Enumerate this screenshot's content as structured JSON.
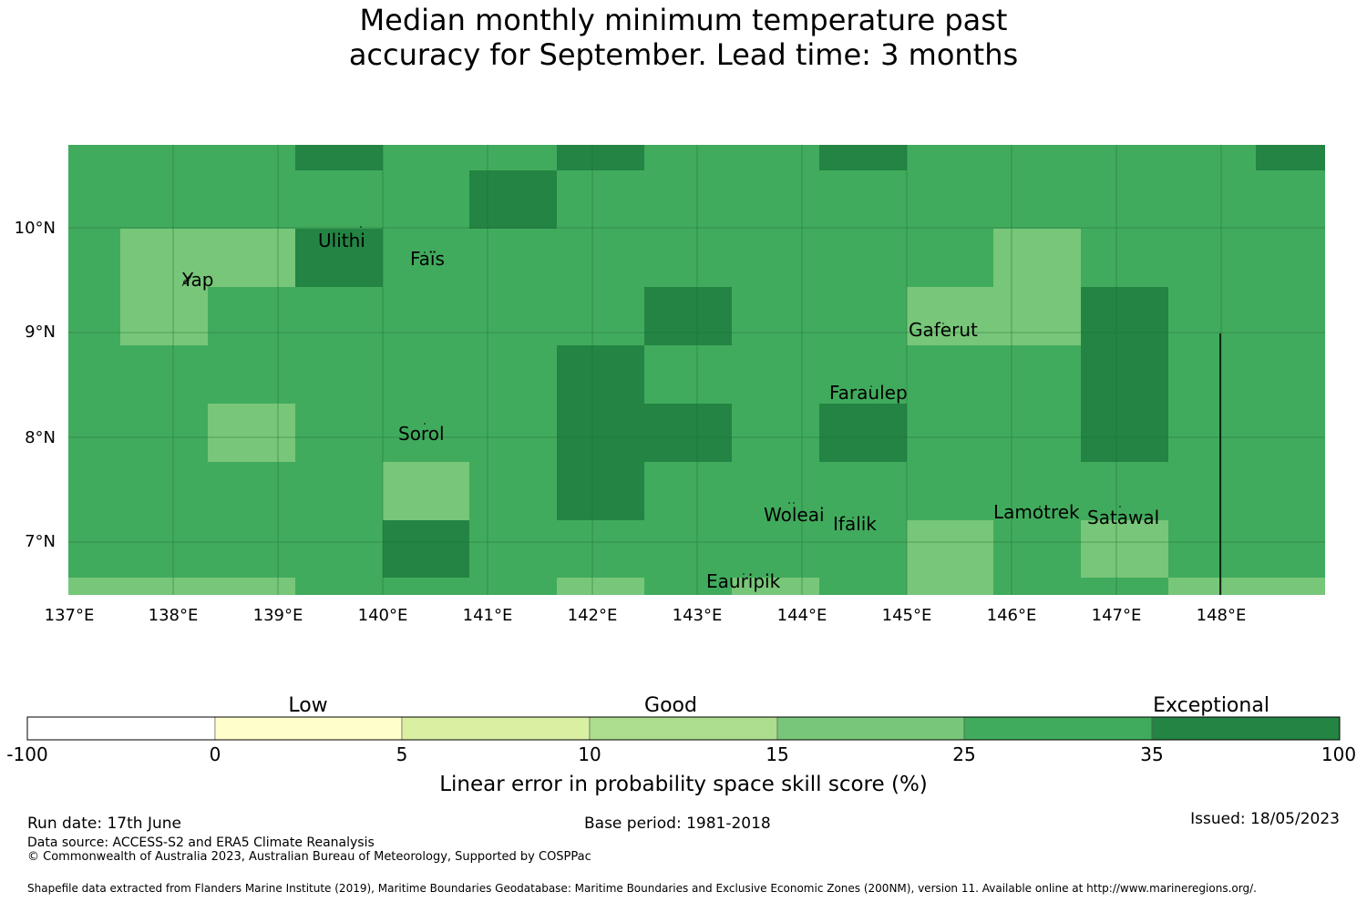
{
  "title": {
    "line1": "Median monthly minimum temperature past",
    "line2": "accuracy for September. Lead time: 3 months"
  },
  "map": {
    "lon_range": [
      137,
      149
    ],
    "lat_range": [
      6.5,
      10.8
    ],
    "x_ticks": [
      "137°E",
      "138°E",
      "139°E",
      "140°E",
      "141°E",
      "142°E",
      "143°E",
      "144°E",
      "145°E",
      "146°E",
      "147°E",
      "148°E"
    ],
    "y_ticks": [
      "10°N",
      "9°N",
      "8°N",
      "7°N"
    ],
    "colors": {
      "light": "#78c679",
      "mid": "#41ab5d",
      "dark": "#238443"
    },
    "places": [
      "Ulithi",
      "Faïs",
      "Yap",
      "Gaferut",
      "Faraulep",
      "Sorol",
      "Woleai",
      "Ifalik",
      "Lamotrek",
      "Satawal",
      "Eauripik"
    ]
  },
  "legend": {
    "categories": [
      "Low",
      "Good",
      "Exceptional"
    ],
    "ticks": [
      "-100",
      "0",
      "5",
      "10",
      "15",
      "25",
      "35",
      "100"
    ],
    "colors": [
      "#ffffff",
      "#ffffcc",
      "#d9f0a3",
      "#addd8e",
      "#78c679",
      "#41ab5d",
      "#238443"
    ],
    "label": "Linear error in probability space skill score (%)"
  },
  "footer": {
    "run_date": "Run date: 17th June",
    "base_period": "Base period: 1981-2018",
    "issued": "Issued: 18/05/2023",
    "data_source": "Data source: ACCESS-S2 and ERA5 Climate Reanalysis",
    "copyright": "© Commonwealth of Australia 2023, Australian Bureau of Meteorology, Supported by COSPPac",
    "shapefile": "Shapefile data extracted from Flanders Marine Institute (2019), Maritime Boundaries Geodatabase: Maritime Boundaries and Exclusive Economic Zones (200NM), version 11. Available online at http://www.marineregions.org/."
  }
}
